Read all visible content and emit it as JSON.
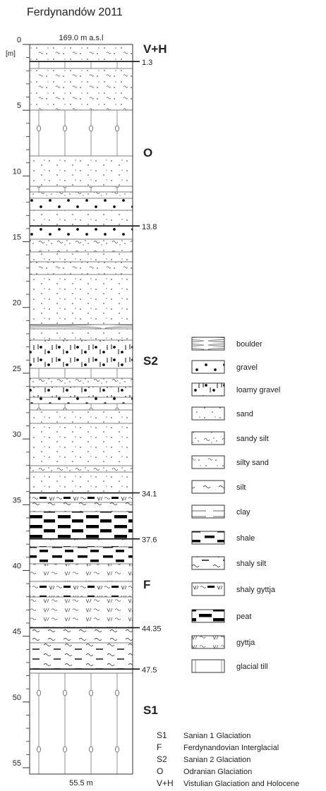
{
  "title": "Ferdynandów 2011",
  "top_label": "169.0 m a.s.l",
  "unit": "[m]",
  "bottom_label": "55.5 m",
  "depth_ticks": [
    0,
    5,
    10,
    15,
    20,
    25,
    30,
    35,
    40,
    45,
    50,
    55
  ],
  "boundaries": [
    1.3,
    13.8,
    34.1,
    37.6,
    44.35,
    47.5
  ],
  "units": [
    "V+H",
    "O",
    "S2",
    "F",
    "S1"
  ],
  "legend": [
    "boulder",
    "gravel",
    "loamy gravel",
    "sand",
    "sandy silt",
    "silty sand",
    "silt",
    "clay",
    "shale",
    "shaly silt",
    "shaly gyttja",
    "peat",
    "gyttja",
    "glacial till"
  ],
  "key": [
    {
      "code": "S1",
      "text": "Sanian 1 Glaciation"
    },
    {
      "code": "F",
      "text": "Ferdynandovian Interglacial"
    },
    {
      "code": "S2",
      "text": "Sanian 2 Glaciation"
    },
    {
      "code": "O",
      "text": "Odranian Glaciation"
    },
    {
      "code": "V+H",
      "text": "Vistulian Glaciation and Holocene"
    }
  ]
}
